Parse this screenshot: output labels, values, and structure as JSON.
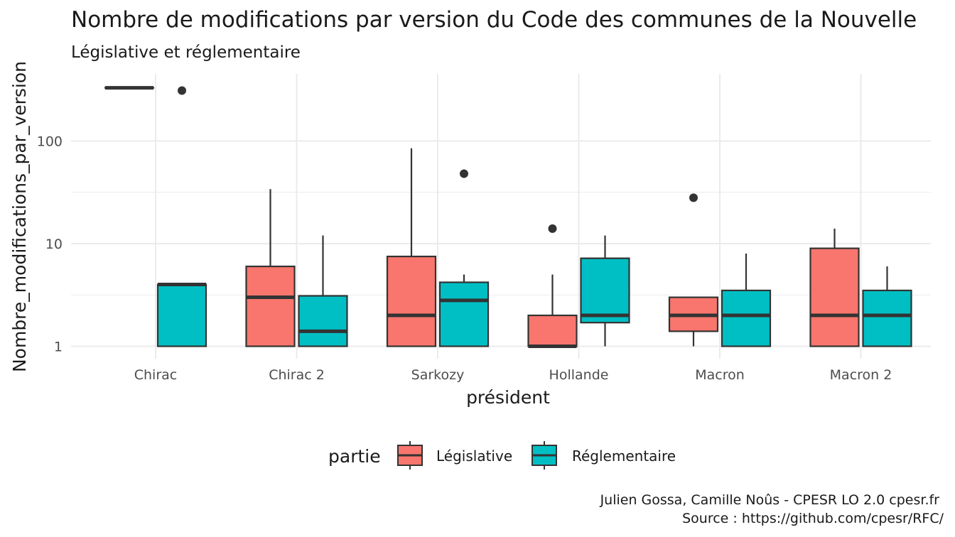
{
  "chart_data": {
    "type": "boxplot",
    "title": "Nombre de modifications par version du Code des communes de la Nouvelle",
    "subtitle": "Législative et réglementaire",
    "xlabel": "président",
    "ylabel": "Nombre_modifications_par_version",
    "y_scale": "log10",
    "ylim": [
      1,
      330
    ],
    "y_ticks": [
      1,
      10,
      100
    ],
    "y_tick_labels": [
      "1",
      "10",
      "100"
    ],
    "grid": true,
    "legend": {
      "title": "partie",
      "position": "bottom",
      "entries": [
        {
          "name": "Législative",
          "color": "#F8766D"
        },
        {
          "name": "Réglementaire",
          "color": "#00BFC4"
        }
      ]
    },
    "categories": [
      "Chirac",
      "Chirac 2",
      "Sarkozy",
      "Hollande",
      "Macron",
      "Macron 2"
    ],
    "series": [
      {
        "name": "Législative",
        "color": "#F8766D",
        "boxes": [
          {
            "min": 330,
            "q1": 330,
            "median": 330,
            "q3": 330,
            "max": 330,
            "outliers": []
          },
          {
            "min": 1,
            "q1": 1,
            "median": 3,
            "q3": 6,
            "max": 34,
            "outliers": []
          },
          {
            "min": 1,
            "q1": 1,
            "median": 2,
            "q3": 7.5,
            "max": 85,
            "outliers": []
          },
          {
            "min": 1,
            "q1": 1,
            "median": 1,
            "q3": 2,
            "max": 5,
            "outliers": [
              14
            ]
          },
          {
            "min": 1,
            "q1": 1.4,
            "median": 2,
            "q3": 3,
            "max": 3,
            "outliers": [
              28
            ]
          },
          {
            "min": 1,
            "q1": 1,
            "median": 2,
            "q3": 9,
            "max": 14,
            "outliers": []
          }
        ]
      },
      {
        "name": "Réglementaire",
        "color": "#00BFC4",
        "boxes": [
          {
            "min": 1,
            "q1": 1,
            "median": 4,
            "q3": 4,
            "max": 4,
            "outliers": [
              310
            ]
          },
          {
            "min": 1,
            "q1": 1,
            "median": 1.4,
            "q3": 3.1,
            "max": 12,
            "outliers": []
          },
          {
            "min": 1,
            "q1": 1,
            "median": 2.8,
            "q3": 4.2,
            "max": 5,
            "outliers": [
              48
            ]
          },
          {
            "min": 1,
            "q1": 1.7,
            "median": 2,
            "q3": 7.2,
            "max": 12,
            "outliers": []
          },
          {
            "min": 1,
            "q1": 1,
            "median": 2,
            "q3": 3.5,
            "max": 8,
            "outliers": []
          },
          {
            "min": 1,
            "q1": 1,
            "median": 2,
            "q3": 3.5,
            "max": 6,
            "outliers": []
          }
        ]
      }
    ],
    "caption": [
      "Julien Gossa, Camille Noûs - CPESR LO 2.0 cpesr.fr",
      "Source : https://github.com/cpesr/RFC/"
    ]
  }
}
